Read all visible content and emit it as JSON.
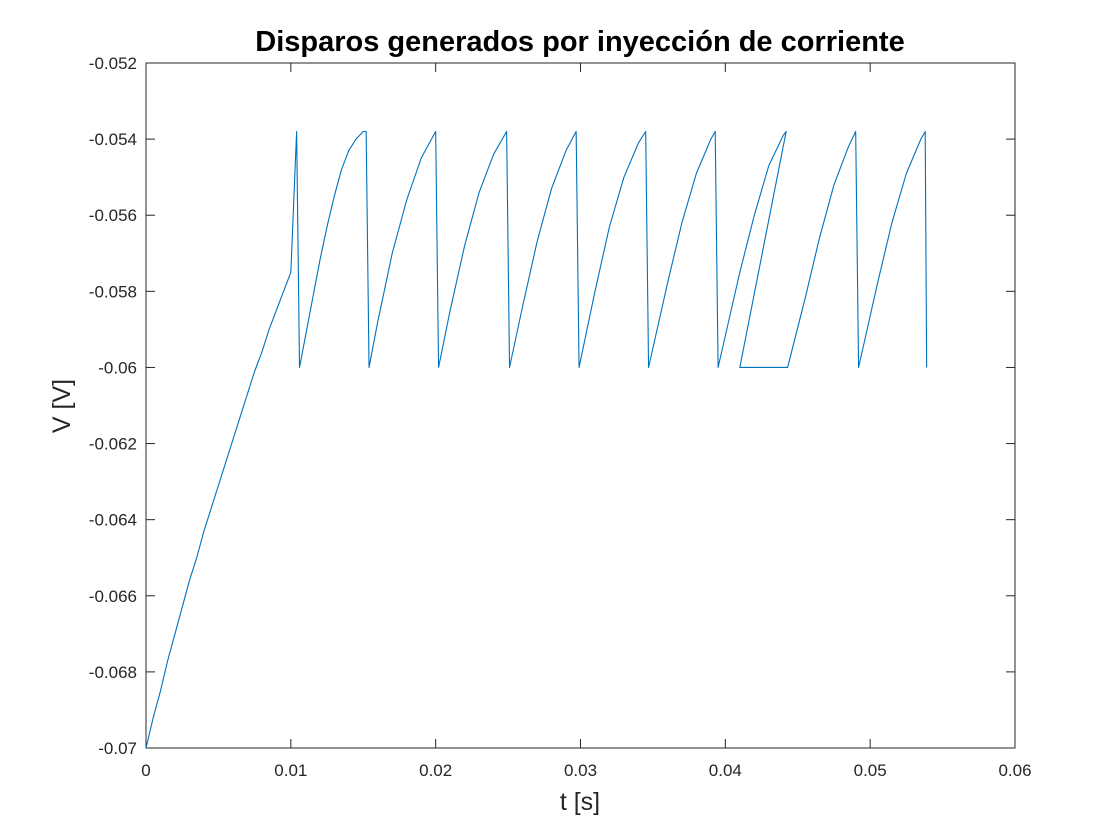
{
  "chart_data": {
    "type": "line",
    "title": "Disparos generados por inyección de corriente",
    "xlabel": "t [s]",
    "ylabel": "V [V]",
    "xlim": [
      0,
      0.06
    ],
    "ylim": [
      -0.07,
      -0.052
    ],
    "x_ticks": [
      0,
      0.01,
      0.02,
      0.03,
      0.04,
      0.05,
      0.06
    ],
    "x_tick_labels": [
      "0",
      "0.01",
      "0.02",
      "0.03",
      "0.04",
      "0.05",
      "0.06"
    ],
    "y_ticks": [
      -0.07,
      -0.068,
      -0.066,
      -0.064,
      -0.062,
      -0.06,
      -0.058,
      -0.056,
      -0.054,
      -0.052
    ],
    "y_tick_labels": [
      "-0.07",
      "-0.068",
      "-0.066",
      "-0.064",
      "-0.062",
      "-0.06",
      "-0.058",
      "-0.056",
      "-0.054",
      "-0.052"
    ],
    "grid": false,
    "line_color": "#0072bd",
    "series": [
      {
        "x": [
          0,
          0.0005,
          0.001,
          0.0015,
          0.002,
          0.0025,
          0.003,
          0.0035,
          0.004,
          0.0045,
          0.005,
          0.0055,
          0.006,
          0.0065,
          0.007,
          0.0075,
          0.008,
          0.0085,
          0.009,
          0.0095,
          0.01,
          0.0104,
          0.0106,
          0.011,
          0.0115,
          0.012,
          0.0125,
          0.013,
          0.0135,
          0.014,
          0.0145,
          0.015,
          0.0152,
          0.0154,
          0.016,
          0.017,
          0.018,
          0.019,
          0.02,
          0.0202,
          0.021,
          0.022,
          0.023,
          0.024,
          0.0249,
          0.0251,
          0.026,
          0.027,
          0.028,
          0.029,
          0.0297,
          0.0299,
          0.031,
          0.032,
          0.033,
          0.034,
          0.0345,
          0.0347,
          0.036,
          0.037,
          0.038,
          0.039,
          0.0393,
          0.0395,
          0.041,
          0.042,
          0.043,
          0.044,
          0.0442,
          0.041,
          0.044,
          0.0443,
          0.0455,
          0.0465,
          0.0475,
          0.0485,
          0.049,
          0.0492,
          0.0505,
          0.0515,
          0.0525,
          0.0535,
          0.0538,
          0.0539
        ],
        "y": [
          -0.07,
          -0.0692,
          -0.0685,
          -0.0677,
          -0.067,
          -0.0663,
          -0.0656,
          -0.065,
          -0.0643,
          -0.0637,
          -0.0631,
          -0.0625,
          -0.0619,
          -0.0613,
          -0.0607,
          -0.0601,
          -0.0596,
          -0.059,
          -0.0585,
          -0.058,
          -0.0575,
          -0.0538,
          -0.06,
          -0.0592,
          -0.0582,
          -0.0572,
          -0.0563,
          -0.0555,
          -0.0548,
          -0.0543,
          -0.054,
          -0.0538,
          -0.0538,
          -0.06,
          -0.0588,
          -0.057,
          -0.0556,
          -0.0545,
          -0.0538,
          -0.06,
          -0.0585,
          -0.0568,
          -0.0554,
          -0.0544,
          -0.0538,
          -0.06,
          -0.0584,
          -0.0567,
          -0.0553,
          -0.0543,
          -0.0538,
          -0.06,
          -0.058,
          -0.0563,
          -0.055,
          -0.0541,
          -0.0538,
          -0.06,
          -0.0578,
          -0.0562,
          -0.0549,
          -0.054,
          -0.0538,
          -0.06,
          -0.0575,
          -0.056,
          -0.0547,
          -0.0539,
          -0.0538,
          -0.06,
          -0.06,
          -0.06,
          -0.0582,
          -0.0566,
          -0.0552,
          -0.0542,
          -0.0538,
          -0.06,
          -0.0578,
          -0.0562,
          -0.0549,
          -0.054,
          -0.0538,
          -0.06
        ]
      }
    ]
  }
}
